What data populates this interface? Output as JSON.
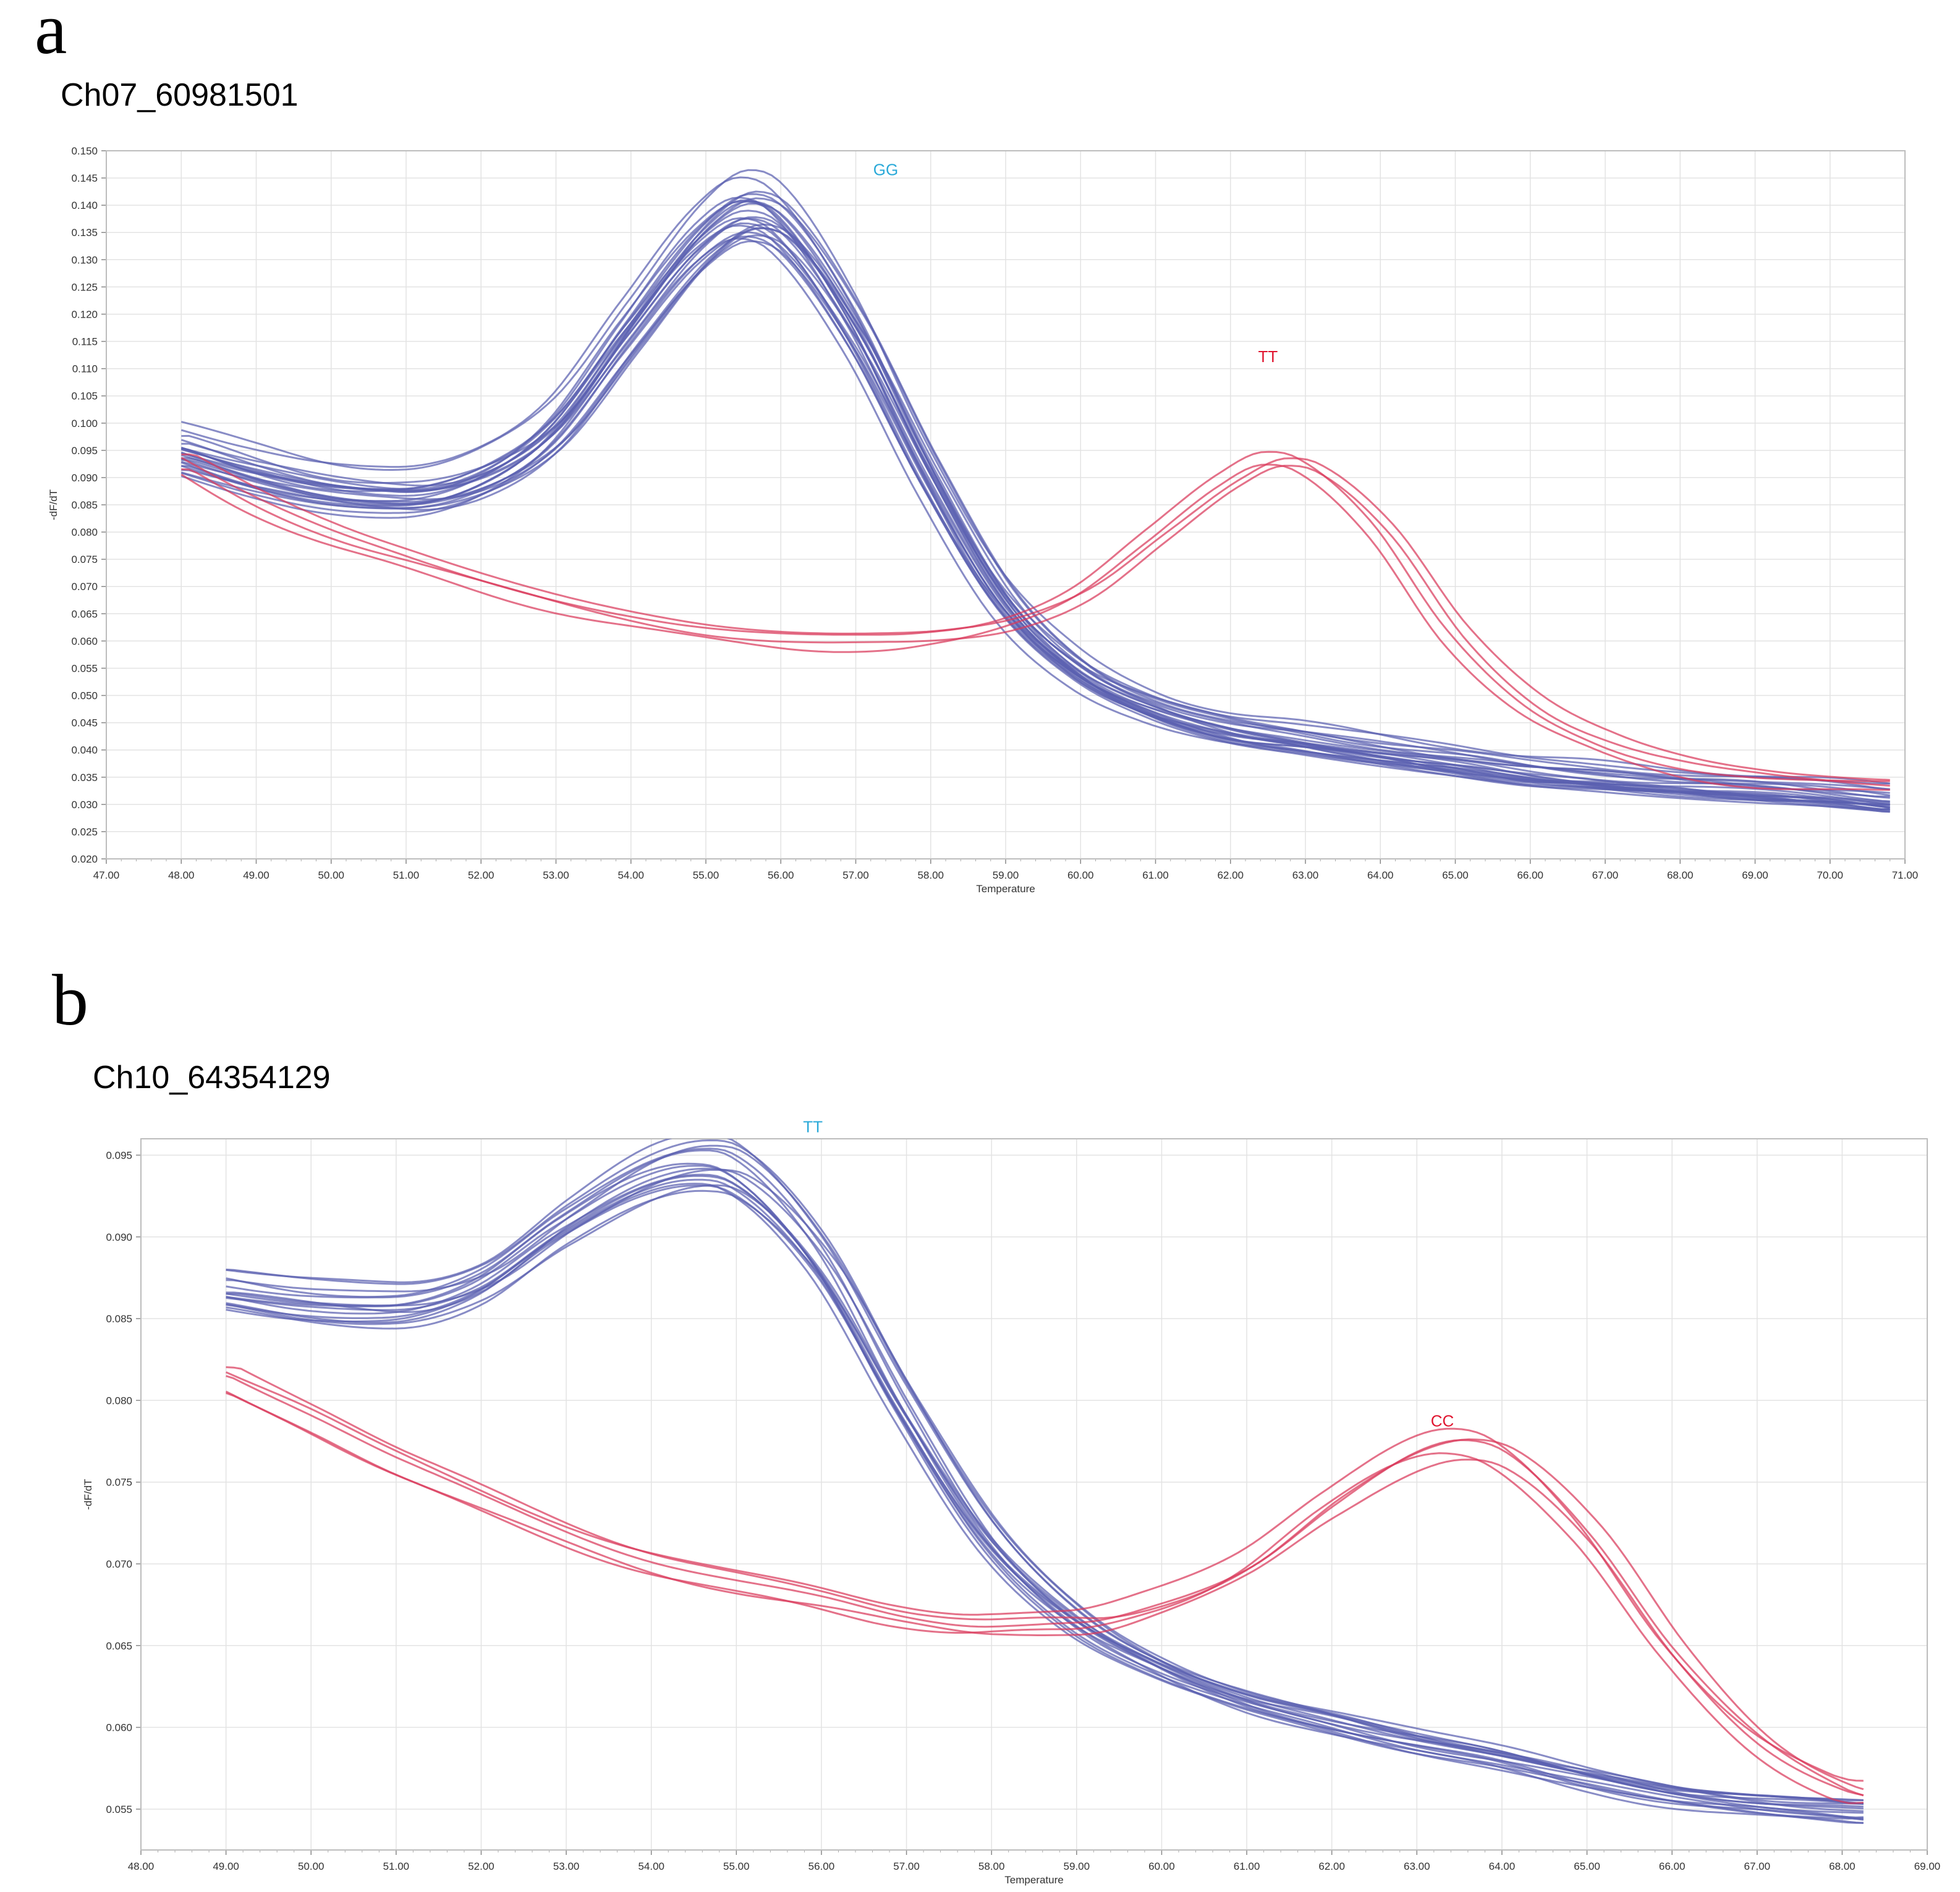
{
  "figure": {
    "panels": [
      {
        "letter": "a",
        "title": "Ch07_60981501"
      },
      {
        "letter": "b",
        "title": "Ch10_64354129"
      }
    ]
  },
  "chart_data": [
    {
      "type": "line",
      "title": "Ch07_60981501",
      "xlabel": "Temperature",
      "ylabel": "-dF/dT",
      "xlim": [
        47,
        71
      ],
      "ylim": [
        0.02,
        0.15
      ],
      "x_ticks": [
        "47.00",
        "48.00",
        "49.00",
        "50.00",
        "51.00",
        "52.00",
        "53.00",
        "54.00",
        "55.00",
        "56.00",
        "57.00",
        "58.00",
        "59.00",
        "60.00",
        "61.00",
        "62.00",
        "63.00",
        "64.00",
        "65.00",
        "66.00",
        "67.00",
        "68.00",
        "69.00",
        "70.00",
        "71.00"
      ],
      "y_ticks": [
        "0.020",
        "0.025",
        "0.030",
        "0.035",
        "0.040",
        "0.045",
        "0.050",
        "0.055",
        "0.060",
        "0.065",
        "0.070",
        "0.075",
        "0.080",
        "0.085",
        "0.090",
        "0.095",
        "0.100",
        "0.105",
        "0.110",
        "0.115",
        "0.120",
        "0.125",
        "0.130",
        "0.135",
        "0.140",
        "0.145",
        "0.150"
      ],
      "grid": true,
      "annotations": [
        {
          "text": "GG",
          "x": 57.4,
          "y": 0.1455,
          "color": "#2aa9d8"
        },
        {
          "text": "TT",
          "x": 62.5,
          "y": 0.1112,
          "color": "#e0152f"
        }
      ],
      "series": [
        {
          "name": "GG",
          "color": "#5a5fb0",
          "count": 24,
          "x": [
            48.0,
            49.0,
            50.0,
            51.0,
            52.0,
            53.0,
            54.0,
            55.0,
            55.6,
            56.0,
            57.0,
            58.0,
            59.0,
            60.0,
            61.0,
            62.0,
            63.0,
            64.0,
            65.0,
            66.0,
            67.0,
            68.0,
            69.0,
            70.0,
            70.8
          ],
          "y": [
            0.095,
            0.091,
            0.088,
            0.087,
            0.09,
            0.099,
            0.117,
            0.134,
            0.139,
            0.137,
            0.118,
            0.091,
            0.068,
            0.055,
            0.048,
            0.044,
            0.042,
            0.04,
            0.038,
            0.036,
            0.035,
            0.034,
            0.033,
            0.032,
            0.031
          ]
        },
        {
          "name": "TT",
          "color": "#d93a5c",
          "count": 4,
          "x": [
            48.0,
            49.0,
            50.0,
            51.0,
            52.0,
            53.0,
            54.0,
            55.0,
            56.0,
            57.0,
            58.0,
            59.0,
            60.0,
            61.0,
            62.0,
            62.6,
            63.0,
            64.0,
            65.0,
            66.0,
            67.0,
            68.0,
            69.0,
            70.0,
            70.8
          ],
          "y": [
            0.0925,
            0.085,
            0.079,
            0.0745,
            0.0705,
            0.067,
            0.064,
            0.0615,
            0.06,
            0.0595,
            0.06,
            0.0625,
            0.0685,
            0.079,
            0.089,
            0.0925,
            0.0915,
            0.08,
            0.061,
            0.048,
            0.041,
            0.037,
            0.035,
            0.034,
            0.0335
          ]
        }
      ]
    },
    {
      "type": "line",
      "title": "Ch10_64354129",
      "xlabel": "Temperature",
      "ylabel": "-dF/dT",
      "xlim": [
        48,
        69
      ],
      "ylim": [
        0.0525,
        0.096
      ],
      "x_ticks": [
        "48.00",
        "49.00",
        "50.00",
        "51.00",
        "52.00",
        "53.00",
        "54.00",
        "55.00",
        "56.00",
        "57.00",
        "58.00",
        "59.00",
        "60.00",
        "61.00",
        "62.00",
        "63.00",
        "64.00",
        "65.00",
        "66.00",
        "67.00",
        "68.00",
        "69.00"
      ],
      "y_ticks": [
        "0.055",
        "0.060",
        "0.065",
        "0.070",
        "0.075",
        "0.080",
        "0.085",
        "0.090",
        "0.095"
      ],
      "grid": true,
      "annotations": [
        {
          "text": "TT",
          "x": 55.9,
          "y": 0.0964,
          "color": "#2aa9d8"
        },
        {
          "text": "CC",
          "x": 63.3,
          "y": 0.0784,
          "color": "#e0152f"
        }
      ],
      "series": [
        {
          "name": "TT",
          "color": "#5a5fb0",
          "count": 16,
          "x": [
            49.0,
            50.0,
            51.0,
            52.0,
            53.0,
            54.0,
            54.6,
            55.0,
            56.0,
            57.0,
            58.0,
            59.0,
            60.0,
            61.0,
            62.0,
            63.0,
            64.0,
            65.0,
            66.0,
            67.0,
            68.0,
            68.25
          ],
          "y": [
            0.0865,
            0.0858,
            0.0855,
            0.0868,
            0.0905,
            0.0935,
            0.0942,
            0.0938,
            0.0885,
            0.0795,
            0.0715,
            0.0665,
            0.0635,
            0.0615,
            0.0602,
            0.059,
            0.058,
            0.0568,
            0.0558,
            0.0552,
            0.0548,
            0.0547
          ]
        },
        {
          "name": "CC",
          "color": "#d93a5c",
          "count": 5,
          "x": [
            49.0,
            50.0,
            51.0,
            52.0,
            53.0,
            54.0,
            55.0,
            56.0,
            57.0,
            58.0,
            59.0,
            60.0,
            61.0,
            62.0,
            63.0,
            63.5,
            64.0,
            65.0,
            66.0,
            67.0,
            68.0,
            68.25
          ],
          "y": [
            0.0808,
            0.0785,
            0.0758,
            0.0735,
            0.0715,
            0.0698,
            0.0685,
            0.0675,
            0.0665,
            0.066,
            0.066,
            0.0672,
            0.0695,
            0.0732,
            0.0762,
            0.0768,
            0.0762,
            0.0715,
            0.0645,
            0.0592,
            0.0562,
            0.0558
          ]
        }
      ]
    }
  ]
}
